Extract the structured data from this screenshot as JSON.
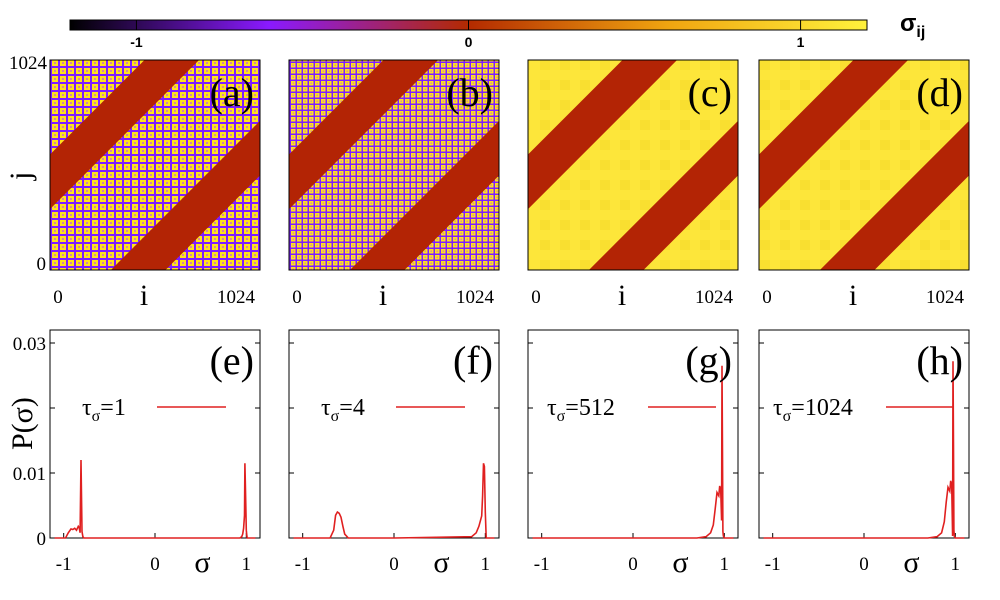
{
  "figure": {
    "colorbar": {
      "title": "σ",
      "title_sub": "ij",
      "ticks": [
        {
          "value": -1,
          "label": "-1"
        },
        {
          "value": 0,
          "label": "0"
        },
        {
          "value": 1,
          "label": "1"
        }
      ],
      "range": [
        -1.2,
        1.2
      ],
      "colors": [
        "#000000",
        "#8a1aff",
        "#b32a00",
        "#f0a510",
        "#fff23c"
      ]
    },
    "matrix_axis": {
      "x_label": "i",
      "y_label": "j",
      "x_min_label": "0",
      "x_max_label": "1024",
      "y_min_label": "0",
      "y_max_label": "1024"
    },
    "hist_axis": {
      "x_label": "σ",
      "y_label": "P(σ)",
      "x_tick_labels": [
        "-1",
        "0",
        "1"
      ],
      "y_tick_labels": [
        "0",
        "0.01",
        "0.03"
      ]
    }
  },
  "chart_data": [
    {
      "type": "heatmap",
      "panel": "(a)",
      "title": "(a)",
      "xlabel": "i",
      "ylabel": "j",
      "xlim": [
        0,
        1024
      ],
      "ylim": [
        0,
        1024
      ],
      "band_value": 0,
      "background": "mixed ±1",
      "tau_sigma": 1
    },
    {
      "type": "heatmap",
      "panel": "(b)",
      "title": "(b)",
      "xlabel": "i",
      "ylabel": "",
      "xlim": [
        0,
        1024
      ],
      "ylim": [
        0,
        1024
      ],
      "band_value": 0,
      "background": "mixed ±1",
      "tau_sigma": 4
    },
    {
      "type": "heatmap",
      "panel": "(c)",
      "title": "(c)",
      "xlabel": "i",
      "ylabel": "",
      "xlim": [
        0,
        1024
      ],
      "ylim": [
        0,
        1024
      ],
      "band_value": 0,
      "background": "≈1",
      "tau_sigma": 512
    },
    {
      "type": "heatmap",
      "panel": "(d)",
      "title": "(d)",
      "xlabel": "i",
      "ylabel": "",
      "xlim": [
        0,
        1024
      ],
      "ylim": [
        0,
        1024
      ],
      "band_value": 0,
      "background": "≈1",
      "tau_sigma": 1024
    },
    {
      "type": "line",
      "panel": "(e)",
      "title": "(e)",
      "legend": "τ",
      "legend_sub": "σ",
      "legend_value": "=1",
      "xlabel": "σ",
      "ylabel": "P(σ)",
      "xlim": [
        -1.15,
        1.15
      ],
      "ylim": [
        0,
        0.032
      ],
      "x": [
        -1.1,
        -0.98,
        -0.95,
        -0.92,
        -0.9,
        -0.88,
        -0.86,
        -0.84,
        -0.83,
        -0.82,
        -0.81,
        -0.8,
        -0.79,
        -0.78,
        -0.75,
        0,
        0.93,
        0.95,
        0.96,
        0.97,
        0.98,
        0.985,
        0.99,
        0.995,
        1.0,
        1.005,
        1.01,
        1.1
      ],
      "y": [
        0,
        0,
        0.0008,
        0.0014,
        0.0013,
        0.0015,
        0.0012,
        0.0018,
        0.0016,
        0.0008,
        0.012,
        0.001,
        0.0002,
        0,
        0,
        0,
        0,
        0.0002,
        0.0006,
        0.0015,
        0.0035,
        0.0115,
        0.008,
        0.005,
        0.0012,
        0.0004,
        0,
        0
      ]
    },
    {
      "type": "line",
      "panel": "(f)",
      "title": "(f)",
      "legend": "τ",
      "legend_sub": "σ",
      "legend_value": "=4",
      "xlabel": "σ",
      "ylabel": "",
      "xlim": [
        -1.15,
        1.15
      ],
      "ylim": [
        0,
        0.032
      ],
      "x": [
        -1.1,
        -0.7,
        -0.66,
        -0.64,
        -0.62,
        -0.6,
        -0.58,
        -0.56,
        -0.54,
        -0.5,
        0,
        0.85,
        0.9,
        0.93,
        0.96,
        0.97,
        0.98,
        0.99,
        1.0,
        1.01,
        1.1
      ],
      "y": [
        0,
        0,
        0.0012,
        0.0035,
        0.004,
        0.0038,
        0.0032,
        0.0018,
        0.0006,
        0,
        0,
        0.0002,
        0.0008,
        0.0018,
        0.0034,
        0.0065,
        0.0115,
        0.011,
        0.004,
        0,
        0
      ]
    },
    {
      "type": "line",
      "panel": "(g)",
      "title": "(g)",
      "legend": "τ",
      "legend_sub": "σ",
      "legend_value": "=512",
      "xlabel": "σ",
      "ylabel": "",
      "xlim": [
        -1.15,
        1.15
      ],
      "ylim": [
        0,
        0.032
      ],
      "x": [
        -1.1,
        0.7,
        0.8,
        0.85,
        0.88,
        0.9,
        0.92,
        0.94,
        0.95,
        0.96,
        0.97,
        0.975,
        0.98,
        0.985,
        0.99,
        1.0,
        1.01,
        1.1
      ],
      "y": [
        0,
        0,
        0.0002,
        0.0008,
        0.002,
        0.0045,
        0.007,
        0.0065,
        0.008,
        0.0075,
        0.0027,
        0.0265,
        0.013,
        0.001,
        0.0003,
        0,
        0,
        0
      ]
    },
    {
      "type": "line",
      "panel": "(h)",
      "title": "(h)",
      "legend": "τ",
      "legend_sub": "σ",
      "legend_value": "=1024",
      "xlabel": "σ",
      "ylabel": "",
      "xlim": [
        -1.15,
        1.15
      ],
      "ylim": [
        0,
        0.032
      ],
      "x": [
        -1.1,
        0.7,
        0.8,
        0.85,
        0.88,
        0.9,
        0.92,
        0.94,
        0.95,
        0.96,
        0.97,
        0.975,
        0.98,
        0.985,
        0.99,
        1.0,
        1.1
      ],
      "y": [
        0,
        0,
        0.0002,
        0.0008,
        0.0025,
        0.0055,
        0.0078,
        0.0072,
        0.0088,
        0.0082,
        0.0003,
        0.0272,
        0.014,
        0.0012,
        0.0002,
        0,
        0
      ]
    }
  ]
}
